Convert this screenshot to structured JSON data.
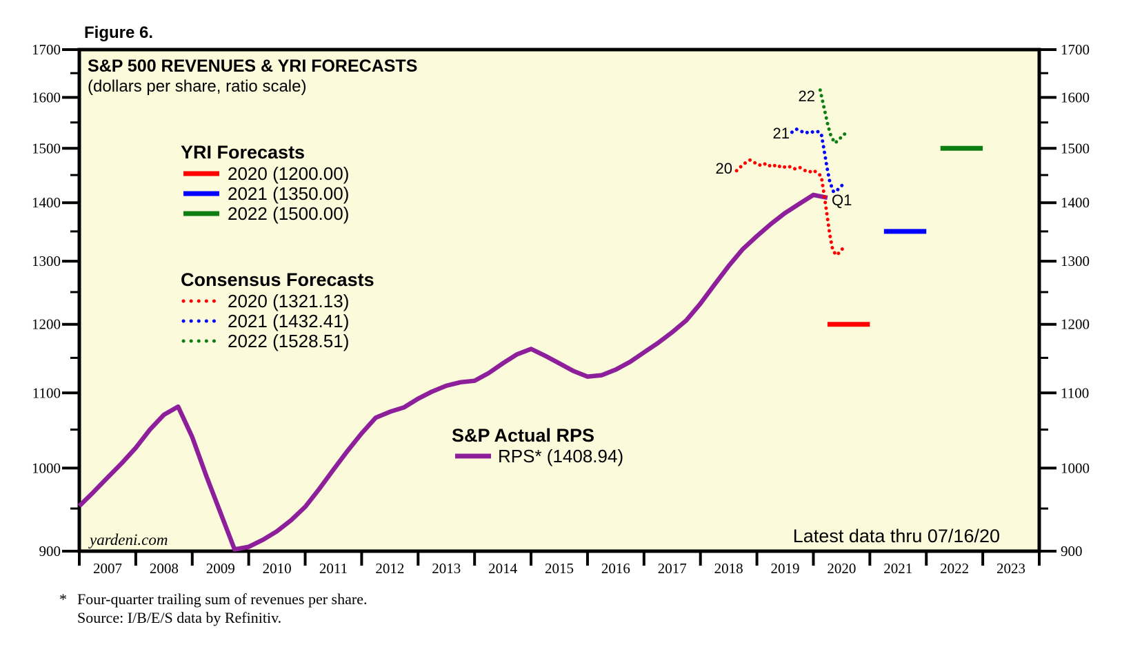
{
  "colors": {
    "plot_background": "#fbfbdc",
    "red": "#ff0000",
    "blue": "#0000ff",
    "green": "#0e7d12",
    "purple": "#8e1f9b",
    "ink": "#000000"
  },
  "figure_label": "Figure 6.",
  "watermark": "yardeni.com",
  "latest_data": "Latest data thru 07/16/20",
  "footnote": {
    "marker": "*",
    "line1": "Four-quarter trailing sum of revenues per share.",
    "line2": "Source: I/B/E/S data by Refinitiv."
  },
  "series_labels": {
    "red20": "20",
    "blue21": "21",
    "green22": "22",
    "q1": "Q1"
  },
  "legends": {
    "yri": {
      "header": "YRI Forecasts",
      "items": [
        {
          "label": "2020 (1200.00)",
          "color_key": "red"
        },
        {
          "label": "2021 (1350.00)",
          "color_key": "blue"
        },
        {
          "label": "2022 (1500.00)",
          "color_key": "green"
        }
      ]
    },
    "consensus": {
      "header": "Consensus Forecasts",
      "items": [
        {
          "label": "2020 (1321.13)",
          "color_key": "red"
        },
        {
          "label": "2021 (1432.41)",
          "color_key": "blue"
        },
        {
          "label": "2022 (1528.51)",
          "color_key": "green"
        }
      ]
    },
    "actual": {
      "header": "S&P Actual RPS",
      "items": [
        {
          "label": "RPS* (1408.94)",
          "color_key": "purple"
        }
      ]
    }
  },
  "chart_data": {
    "type": "line",
    "title": "S&P 500 REVENUES & YRI FORECASTS",
    "subtitle": "(dollars per share, ratio scale)",
    "grid": false,
    "y_axis": {
      "scale": "log",
      "min": 900,
      "max": 1700,
      "major_ticks": [
        900,
        1000,
        1100,
        1200,
        1300,
        1400,
        1500,
        1600,
        1700
      ],
      "minor_ticks": [
        950,
        1050,
        1150,
        1250,
        1350,
        1450,
        1550,
        1650
      ]
    },
    "x_axis": {
      "min": 2007,
      "max": 2024,
      "years": [
        2007,
        2008,
        2009,
        2010,
        2011,
        2012,
        2013,
        2014,
        2015,
        2016,
        2017,
        2018,
        2019,
        2020,
        2021,
        2022,
        2023
      ]
    },
    "series": [
      {
        "id": "rps-actual",
        "name": "S&P Actual RPS (trailing 4Q revenues per share)",
        "style": "solid",
        "color_key": "purple",
        "final_value": 1408.94,
        "points": [
          [
            2007.0,
            953
          ],
          [
            2007.25,
            970
          ],
          [
            2007.5,
            988
          ],
          [
            2007.75,
            1006
          ],
          [
            2008.0,
            1026
          ],
          [
            2008.25,
            1050
          ],
          [
            2008.5,
            1070
          ],
          [
            2008.75,
            1081
          ],
          [
            2009.0,
            1040
          ],
          [
            2009.25,
            990
          ],
          [
            2009.5,
            945
          ],
          [
            2009.75,
            902
          ],
          [
            2010.0,
            905
          ],
          [
            2010.25,
            913
          ],
          [
            2010.5,
            923
          ],
          [
            2010.75,
            936
          ],
          [
            2011.0,
            952
          ],
          [
            2011.25,
            974
          ],
          [
            2011.5,
            998
          ],
          [
            2011.75,
            1022
          ],
          [
            2012.0,
            1045
          ],
          [
            2012.25,
            1066
          ],
          [
            2012.5,
            1074
          ],
          [
            2012.75,
            1080
          ],
          [
            2013.0,
            1092
          ],
          [
            2013.25,
            1102
          ],
          [
            2013.5,
            1110
          ],
          [
            2013.75,
            1115
          ],
          [
            2014.0,
            1117
          ],
          [
            2014.25,
            1128
          ],
          [
            2014.5,
            1142
          ],
          [
            2014.75,
            1155
          ],
          [
            2015.0,
            1163
          ],
          [
            2015.25,
            1153
          ],
          [
            2015.5,
            1142
          ],
          [
            2015.75,
            1131
          ],
          [
            2016.0,
            1123
          ],
          [
            2016.25,
            1125
          ],
          [
            2016.5,
            1133
          ],
          [
            2016.75,
            1144
          ],
          [
            2017.0,
            1158
          ],
          [
            2017.25,
            1172
          ],
          [
            2017.5,
            1188
          ],
          [
            2017.75,
            1206
          ],
          [
            2018.0,
            1232
          ],
          [
            2018.25,
            1262
          ],
          [
            2018.5,
            1292
          ],
          [
            2018.75,
            1320
          ],
          [
            2019.0,
            1342
          ],
          [
            2019.25,
            1363
          ],
          [
            2019.5,
            1382
          ],
          [
            2019.75,
            1398
          ],
          [
            2020.0,
            1414
          ],
          [
            2020.25,
            1408.94
          ]
        ]
      },
      {
        "id": "consensus-2020",
        "name": "Consensus Forecast 2020",
        "style": "dotted",
        "color_key": "red",
        "final_value": 1321.13,
        "points": [
          [
            2018.64,
            1458
          ],
          [
            2018.72,
            1466
          ],
          [
            2018.8,
            1473
          ],
          [
            2018.88,
            1478
          ],
          [
            2018.96,
            1473
          ],
          [
            2019.04,
            1468
          ],
          [
            2019.12,
            1472
          ],
          [
            2019.2,
            1466
          ],
          [
            2019.28,
            1470
          ],
          [
            2019.36,
            1464
          ],
          [
            2019.44,
            1468
          ],
          [
            2019.52,
            1463
          ],
          [
            2019.6,
            1466
          ],
          [
            2019.68,
            1461
          ],
          [
            2019.76,
            1464
          ],
          [
            2019.84,
            1459
          ],
          [
            2019.92,
            1455
          ],
          [
            2020.0,
            1459
          ],
          [
            2020.08,
            1453
          ],
          [
            2020.14,
            1448
          ],
          [
            2020.19,
            1415
          ],
          [
            2020.24,
            1380
          ],
          [
            2020.29,
            1345
          ],
          [
            2020.34,
            1320
          ],
          [
            2020.4,
            1310
          ],
          [
            2020.46,
            1314
          ],
          [
            2020.52,
            1321.13
          ]
        ]
      },
      {
        "id": "consensus-2021",
        "name": "Consensus Forecast 2021",
        "style": "dotted",
        "color_key": "blue",
        "final_value": 1432.41,
        "points": [
          [
            2019.62,
            1531
          ],
          [
            2019.7,
            1537
          ],
          [
            2019.78,
            1533
          ],
          [
            2019.86,
            1529
          ],
          [
            2019.94,
            1533
          ],
          [
            2020.02,
            1530
          ],
          [
            2020.08,
            1532
          ],
          [
            2020.14,
            1528
          ],
          [
            2020.19,
            1497
          ],
          [
            2020.24,
            1465
          ],
          [
            2020.29,
            1438
          ],
          [
            2020.36,
            1419
          ],
          [
            2020.44,
            1424
          ],
          [
            2020.52,
            1432.41
          ]
        ]
      },
      {
        "id": "consensus-2022",
        "name": "Consensus Forecast 2022",
        "style": "dotted",
        "color_key": "green",
        "final_value": 1528.51,
        "points": [
          [
            2020.12,
            1615
          ],
          [
            2020.16,
            1594
          ],
          [
            2020.21,
            1568
          ],
          [
            2020.26,
            1543
          ],
          [
            2020.31,
            1524
          ],
          [
            2020.38,
            1510
          ],
          [
            2020.45,
            1516
          ],
          [
            2020.52,
            1525
          ],
          [
            2020.57,
            1528.51
          ]
        ]
      }
    ],
    "yri_bars": [
      {
        "id": "yri-2020",
        "name": "YRI Forecast 2020",
        "color_key": "red",
        "value": 1200,
        "from": 2020.25,
        "to": 2021.0
      },
      {
        "id": "yri-2021",
        "name": "YRI Forecast 2021",
        "color_key": "blue",
        "value": 1350,
        "from": 2021.25,
        "to": 2022.0
      },
      {
        "id": "yri-2022",
        "name": "YRI Forecast 2022",
        "color_key": "green",
        "value": 1500,
        "from": 2022.25,
        "to": 2023.0
      }
    ]
  }
}
